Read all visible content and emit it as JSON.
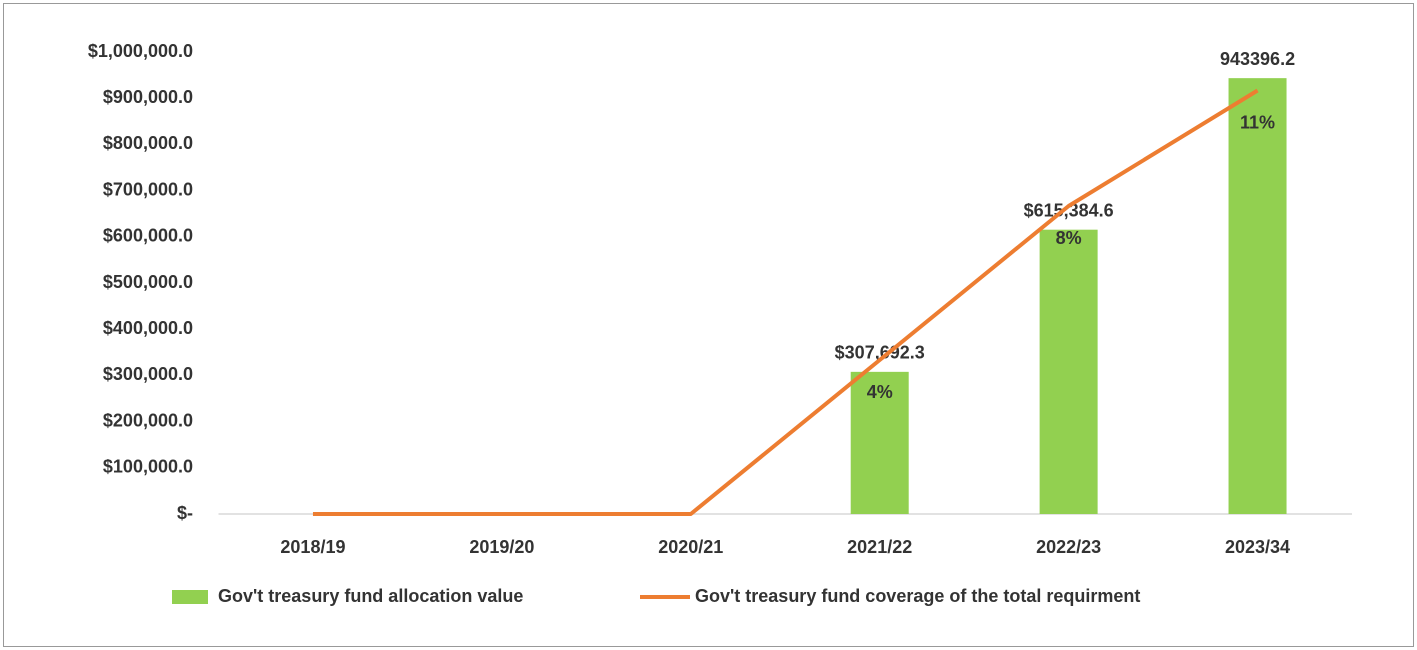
{
  "chart_data": {
    "type": "bar",
    "categories": [
      "2018/19",
      "2019/20",
      "2020/21",
      "2021/22",
      "2022/23",
      "2023/34"
    ],
    "series": [
      {
        "name": "Gov't treasury fund allocation value",
        "color": "#92d050",
        "values": [
          0,
          0,
          0,
          307692.3,
          615384.6,
          943396.2
        ],
        "value_labels": [
          null,
          null,
          null,
          "$307,692.3",
          "$615,384.6",
          "943396.2"
        ]
      },
      {
        "name": "Gov't treasury fund coverage of the total requirment",
        "color": "#ed7d31",
        "type": "line",
        "axis": "y2",
        "values": [
          0,
          0,
          0,
          4,
          8,
          11
        ],
        "value_labels": [
          null,
          null,
          null,
          "4%",
          "8%",
          "11%"
        ]
      }
    ],
    "ylim": [
      0,
      1000000
    ],
    "yticks": [
      {
        "value": 0,
        "label": "$-"
      },
      {
        "value": 100000,
        "label": "$100,000.0"
      },
      {
        "value": 200000,
        "label": "$200,000.0"
      },
      {
        "value": 300000,
        "label": "$300,000.0"
      },
      {
        "value": 400000,
        "label": "$400,000.0"
      },
      {
        "value": 500000,
        "label": "$500,000.0"
      },
      {
        "value": 600000,
        "label": "$600,000.0"
      },
      {
        "value": 700000,
        "label": "$700,000.0"
      },
      {
        "value": 800000,
        "label": "$800,000.0"
      },
      {
        "value": 900000,
        "label": "$900,000.0"
      },
      {
        "value": 1000000,
        "label": "$1,000,000.0"
      }
    ],
    "y2lim": [
      0,
      12
    ],
    "grid": false,
    "legend": "bottom"
  }
}
